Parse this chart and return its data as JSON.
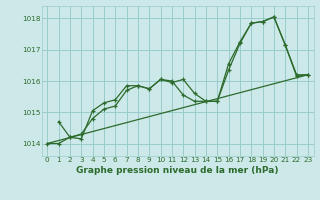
{
  "title": "Graphe pression niveau de la mer (hPa)",
  "bg_color": "#cce8e8",
  "grid_color": "#99cccc",
  "line_color": "#2d6b2d",
  "xlim": [
    -0.5,
    23.5
  ],
  "ylim": [
    1013.6,
    1018.4
  ],
  "yticks": [
    1014,
    1015,
    1016,
    1017,
    1018
  ],
  "xticks": [
    0,
    1,
    2,
    3,
    4,
    5,
    6,
    7,
    8,
    9,
    10,
    11,
    12,
    13,
    14,
    15,
    16,
    17,
    18,
    19,
    20,
    21,
    22,
    23
  ],
  "series1": {
    "x": [
      0,
      1,
      2,
      3,
      4,
      5,
      6,
      7,
      8,
      9,
      10,
      11,
      12,
      13,
      14,
      15,
      16,
      17,
      18,
      19,
      20,
      21,
      22,
      23
    ],
    "y": [
      1014.0,
      1014.0,
      1014.2,
      1014.3,
      1014.8,
      1015.1,
      1015.2,
      1015.7,
      1015.85,
      1015.75,
      1016.05,
      1015.95,
      1016.05,
      1015.6,
      1015.35,
      1015.35,
      1016.55,
      1017.25,
      1017.85,
      1017.9,
      1018.05,
      1017.15,
      1016.15,
      1016.2
    ]
  },
  "series2": {
    "x": [
      1,
      2,
      3,
      4,
      5,
      6,
      7,
      8,
      9,
      10,
      11,
      12,
      13,
      14,
      15,
      16,
      17,
      18,
      19,
      20,
      21,
      22,
      23
    ],
    "y": [
      1014.7,
      1014.2,
      1014.15,
      1015.05,
      1015.3,
      1015.4,
      1015.85,
      1015.85,
      1015.75,
      1016.05,
      1016.0,
      1015.55,
      1015.35,
      1015.35,
      1015.35,
      1016.35,
      1017.2,
      1017.85,
      1017.9,
      1018.05,
      1017.15,
      1016.2,
      1016.2
    ]
  },
  "series3": {
    "x": [
      0,
      23
    ],
    "y": [
      1014.0,
      1016.2
    ]
  },
  "title_fontsize": 6.5,
  "tick_fontsize": 5.2
}
